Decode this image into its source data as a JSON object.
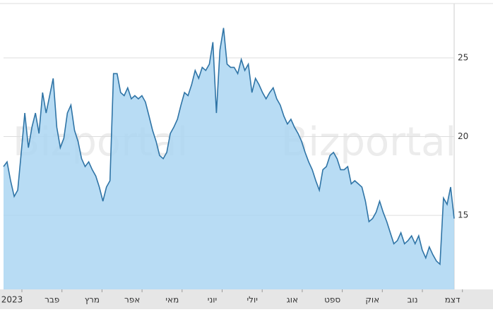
{
  "chart_data": {
    "type": "area",
    "watermark": "Bizportal",
    "x_axis_labels": [
      "2023",
      "פבר",
      "מרץ",
      "אפר",
      "מאי",
      "יוני",
      "יולי",
      "אוג",
      "ספט",
      "אוק",
      "נוב",
      "דצמ"
    ],
    "values": [
      18.1,
      18.4,
      17.2,
      16.2,
      16.6,
      19.0,
      21.5,
      19.3,
      20.6,
      21.5,
      20.2,
      22.8,
      21.5,
      22.6,
      23.7,
      20.6,
      19.3,
      19.9,
      21.5,
      22.0,
      20.4,
      19.7,
      18.6,
      18.1,
      18.4,
      17.9,
      17.5,
      16.8,
      15.9,
      16.8,
      17.2,
      24.0,
      24.0,
      22.8,
      22.6,
      23.1,
      22.4,
      22.6,
      22.4,
      22.6,
      22.2,
      21.3,
      20.4,
      19.7,
      18.8,
      18.6,
      19.0,
      20.2,
      20.6,
      21.1,
      22.0,
      22.8,
      22.6,
      23.3,
      24.2,
      23.7,
      24.4,
      24.2,
      24.6,
      26.0,
      21.5,
      25.5,
      26.9,
      24.6,
      24.4,
      24.4,
      24.0,
      24.9,
      24.2,
      24.6,
      22.8,
      23.7,
      23.3,
      22.8,
      22.4,
      22.8,
      23.1,
      22.4,
      22.0,
      21.3,
      20.8,
      21.1,
      20.6,
      20.2,
      19.7,
      19.0,
      18.4,
      17.9,
      17.2,
      16.6,
      17.9,
      18.1,
      18.8,
      19.0,
      18.6,
      17.9,
      17.9,
      18.1,
      17.0,
      17.2,
      17.0,
      16.8,
      15.9,
      14.6,
      14.8,
      15.2,
      15.9,
      15.2,
      14.6,
      13.9,
      13.2,
      13.4,
      13.9,
      13.2,
      13.4,
      13.7,
      13.2,
      13.7,
      12.8,
      12.3,
      13.0,
      12.5,
      12.1,
      11.9,
      16.1,
      15.7,
      16.8,
      14.8
    ],
    "color": "#2f74a6",
    "fill_color": "#acd6f2",
    "ylim": [
      10.3,
      28.45
    ],
    "yticks": [
      15,
      20,
      25
    ],
    "grid": true
  }
}
